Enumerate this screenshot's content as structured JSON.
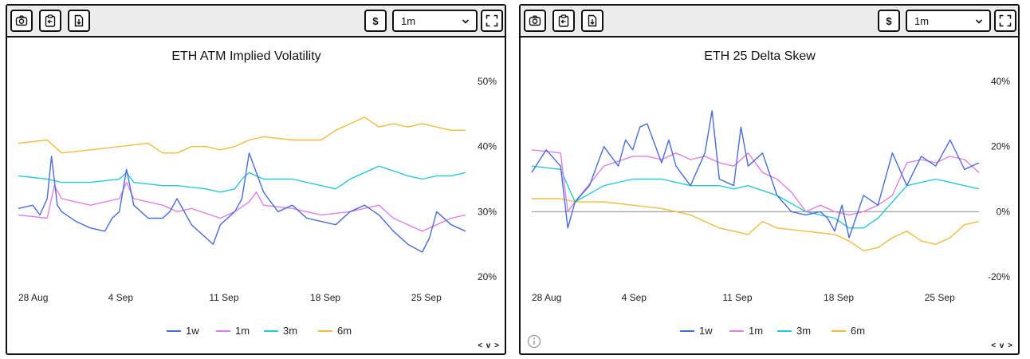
{
  "toolbar": {
    "currency_label": "$",
    "timeframe": "1m",
    "icons": [
      "camera-icon",
      "clipboard-icon",
      "download-file-icon",
      "fullscreen-icon",
      "chevron-down-icon"
    ]
  },
  "footer_nav_label": "< v >",
  "colors": {
    "1w": "#4a6cd8",
    "1m": "#e07fe6",
    "3m": "#26c9d6",
    "6m": "#f2bc3a",
    "zero_line": "#8c8c8c"
  },
  "chart_data": [
    {
      "type": "line",
      "title": "ETH ATM Implied Volatility",
      "xlabel": "",
      "ylabel": "",
      "x_ticks": [
        "28 Aug",
        "4 Sep",
        "11 Sep",
        "18 Sep",
        "25 Sep"
      ],
      "x_tick_days": [
        0,
        7,
        14,
        21,
        28
      ],
      "x_range": [
        0,
        31
      ],
      "y_ticks": [
        "50%",
        "40%",
        "30%",
        "20%"
      ],
      "y_tick_values": [
        50,
        40,
        30,
        20
      ],
      "ylim": [
        20,
        50
      ],
      "y_axis_side": "right",
      "legend_position": "bottom",
      "series": [
        {
          "name": "1w",
          "x": [
            0,
            1,
            1.5,
            2,
            2.3,
            2.7,
            3,
            4,
            5,
            6,
            6.5,
            7,
            7.5,
            8,
            9,
            10,
            10.5,
            11,
            12,
            13,
            13.5,
            14,
            15,
            15.5,
            16,
            17,
            18,
            19,
            20,
            21,
            22,
            23,
            24,
            25,
            26,
            27,
            28,
            28.5,
            29,
            30,
            31
          ],
          "y": [
            30.5,
            31,
            29.5,
            32,
            38.5,
            31,
            30,
            28.5,
            27.5,
            27,
            29,
            30,
            36.5,
            31,
            29,
            29,
            30,
            32,
            28,
            26,
            25,
            28,
            30,
            32,
            39,
            33,
            30,
            31,
            29,
            28.5,
            28,
            30,
            31,
            29.5,
            27,
            25,
            23.8,
            26,
            30,
            28,
            27
          ]
        },
        {
          "name": "1m",
          "x": [
            0,
            2,
            2.5,
            3,
            5,
            7,
            7.5,
            8,
            10,
            11,
            12,
            14,
            15,
            16,
            16.5,
            17,
            19,
            21,
            23,
            25,
            26,
            27,
            28,
            29,
            30,
            31
          ],
          "y": [
            29.5,
            29,
            34,
            32,
            31,
            32,
            34.5,
            32,
            31,
            30,
            30.5,
            29,
            30,
            31.5,
            33,
            31,
            30.5,
            29.5,
            30,
            31,
            29,
            28,
            27,
            28,
            29,
            29.5
          ]
        },
        {
          "name": "3m",
          "x": [
            0,
            2,
            3,
            5,
            7,
            7.5,
            8,
            10,
            11,
            13,
            14,
            15,
            15.5,
            16,
            17,
            19,
            21,
            22,
            23,
            24,
            25,
            27,
            28,
            29,
            30,
            31
          ],
          "y": [
            35.5,
            35,
            34.5,
            34.5,
            35,
            36,
            34.5,
            34,
            34,
            33.5,
            33,
            33.5,
            35,
            36,
            35,
            35,
            34,
            33.5,
            35,
            36,
            37,
            35.5,
            35,
            35.5,
            35.5,
            36
          ]
        },
        {
          "name": "6m",
          "x": [
            0,
            2,
            3,
            5,
            7,
            9,
            10,
            11,
            12,
            13,
            14,
            15,
            16,
            17,
            19,
            21,
            22,
            23,
            24,
            25,
            26,
            27,
            28,
            29,
            30,
            31
          ],
          "y": [
            40.5,
            41,
            39,
            39.5,
            40,
            40.5,
            39,
            39,
            40,
            40,
            39.5,
            40,
            41,
            41.5,
            41,
            41,
            42.5,
            43.5,
            44.5,
            43,
            43.5,
            43,
            43.5,
            43,
            42.5,
            42.5
          ]
        }
      ]
    },
    {
      "type": "line",
      "title": "ETH 25 Delta Skew",
      "xlabel": "",
      "ylabel": "",
      "x_ticks": [
        "28 Aug",
        "4 Sep",
        "11 Sep",
        "18 Sep",
        "25 Sep"
      ],
      "x_tick_days": [
        0,
        7,
        14,
        21,
        28
      ],
      "x_range": [
        0,
        31
      ],
      "y_ticks": [
        "40%",
        "20%",
        "0%",
        "-20%"
      ],
      "y_tick_values": [
        40,
        20,
        0,
        -20
      ],
      "ylim": [
        -20,
        40
      ],
      "y_axis_side": "right",
      "zero_line": true,
      "legend_position": "bottom",
      "series": [
        {
          "name": "1w",
          "x": [
            0,
            1,
            2,
            2.5,
            3,
            4,
            5,
            6,
            6.5,
            7,
            7.5,
            8,
            9,
            9.5,
            10,
            11,
            12,
            12.5,
            13,
            14,
            14.5,
            15,
            16,
            17,
            18,
            19,
            20,
            20.5,
            21,
            21.5,
            22,
            23,
            24,
            25,
            26,
            27,
            28,
            29,
            30,
            31
          ],
          "y": [
            12,
            19,
            14,
            -5,
            3,
            8,
            20,
            14,
            22,
            19,
            26,
            27,
            15,
            22,
            14,
            8,
            18,
            31,
            10,
            8,
            26,
            14,
            18,
            5,
            0,
            -1,
            0,
            -2,
            -6,
            2,
            -8,
            5,
            2,
            18,
            8,
            17,
            14,
            22,
            13,
            15
          ]
        },
        {
          "name": "1m",
          "x": [
            0,
            2,
            2.5,
            3,
            5,
            7,
            8,
            9,
            10,
            11,
            12,
            13,
            14,
            15,
            16,
            17,
            18,
            19,
            20,
            21,
            22,
            23,
            24,
            25,
            26,
            27,
            28,
            29,
            30,
            31
          ],
          "y": [
            19,
            18,
            0,
            3,
            14,
            17,
            17,
            16,
            18,
            16,
            17,
            15,
            14,
            18,
            12,
            10,
            6,
            0,
            2,
            0,
            -1,
            0,
            2,
            5,
            15,
            16,
            15,
            17,
            16,
            12
          ]
        },
        {
          "name": "3m",
          "x": [
            0,
            2,
            3,
            5,
            7,
            9,
            10,
            11,
            13,
            14,
            15,
            17,
            19,
            21,
            22,
            23,
            24,
            25,
            26,
            27,
            28,
            29,
            30,
            31
          ],
          "y": [
            14,
            13,
            3,
            8,
            10,
            10,
            9,
            8,
            8,
            7,
            8,
            5,
            0,
            -2,
            -5,
            -5,
            -2,
            3,
            8,
            9,
            10,
            9,
            8,
            7
          ]
        },
        {
          "name": "6m",
          "x": [
            0,
            2,
            3,
            5,
            7,
            9,
            11,
            13,
            14,
            15,
            16,
            17,
            19,
            21,
            22,
            23,
            24,
            25,
            26,
            27,
            28,
            29,
            30,
            31
          ],
          "y": [
            4,
            4,
            3,
            3,
            2,
            1,
            -1,
            -5,
            -6,
            -7,
            -3,
            -5,
            -6,
            -7,
            -9,
            -12,
            -11,
            -8,
            -6,
            -9,
            -10,
            -8,
            -4,
            -3
          ]
        }
      ]
    }
  ]
}
